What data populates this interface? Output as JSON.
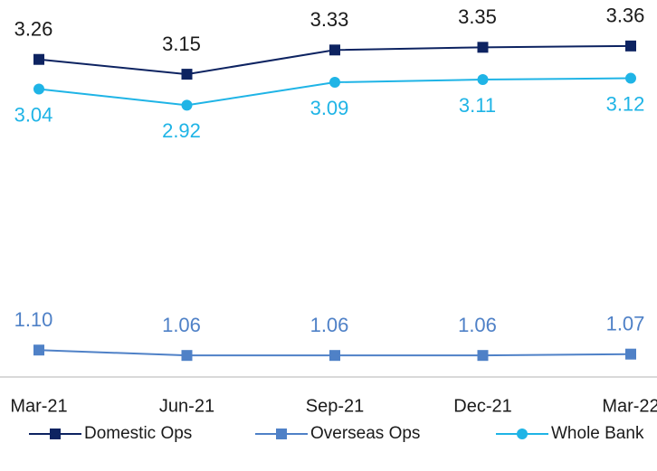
{
  "chart_data": {
    "type": "line",
    "categories": [
      "Mar-21",
      "Jun-21",
      "Sep-21",
      "Dec-21",
      "Mar-22"
    ],
    "series": [
      {
        "name": "Domestic Ops",
        "color": "#0d2361",
        "marker": "square",
        "label_position": "above",
        "values": [
          3.26,
          3.15,
          3.33,
          3.35,
          3.36
        ],
        "value_labels": [
          "3.26",
          "3.15",
          "3.33",
          "3.35",
          "3.36"
        ]
      },
      {
        "name": "Overseas Ops",
        "color": "#4f81c7",
        "marker": "square",
        "label_position": "above",
        "values": [
          1.1,
          1.06,
          1.06,
          1.06,
          1.07
        ],
        "value_labels": [
          "1.10",
          "1.06",
          "1.06",
          "1.06",
          "1.07"
        ]
      },
      {
        "name": "Whole Bank",
        "color": "#1fb4e6",
        "marker": "circle",
        "label_position": "below",
        "values": [
          3.04,
          2.92,
          3.09,
          3.11,
          3.12
        ],
        "value_labels": [
          "3.04",
          "2.92",
          "3.09",
          "3.11",
          "3.12"
        ]
      }
    ],
    "ylim": [
      0.9,
      3.5
    ],
    "legend": "bottom"
  }
}
